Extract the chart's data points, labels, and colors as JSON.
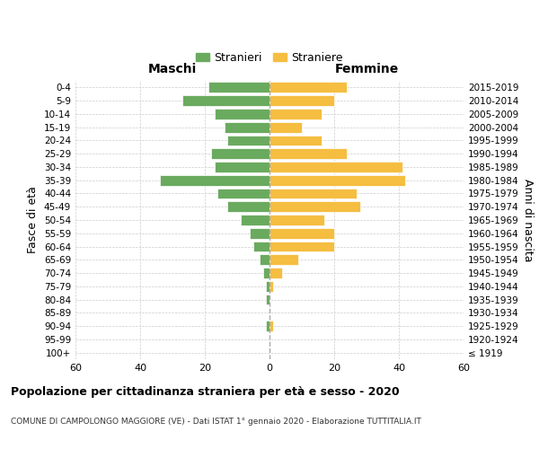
{
  "age_groups": [
    "100+",
    "95-99",
    "90-94",
    "85-89",
    "80-84",
    "75-79",
    "70-74",
    "65-69",
    "60-64",
    "55-59",
    "50-54",
    "45-49",
    "40-44",
    "35-39",
    "30-34",
    "25-29",
    "20-24",
    "15-19",
    "10-14",
    "5-9",
    "0-4"
  ],
  "birth_years": [
    "≤ 1919",
    "1920-1924",
    "1925-1929",
    "1930-1934",
    "1935-1939",
    "1940-1944",
    "1945-1949",
    "1950-1954",
    "1955-1959",
    "1960-1964",
    "1965-1969",
    "1970-1974",
    "1975-1979",
    "1980-1984",
    "1985-1989",
    "1990-1994",
    "1995-1999",
    "2000-2004",
    "2005-2009",
    "2010-2014",
    "2015-2019"
  ],
  "males": [
    0,
    0,
    1,
    0,
    1,
    1,
    2,
    3,
    5,
    6,
    9,
    13,
    16,
    34,
    17,
    18,
    13,
    14,
    17,
    27,
    19
  ],
  "females": [
    0,
    0,
    1,
    0,
    0,
    1,
    4,
    9,
    20,
    20,
    17,
    28,
    27,
    42,
    41,
    24,
    16,
    10,
    16,
    20,
    24
  ],
  "male_color": "#6aaa5f",
  "female_color": "#f5be41",
  "title": "Popolazione per cittadinanza straniera per età e sesso - 2020",
  "subtitle": "COMUNE DI CAMPOLONGO MAGGIORE (VE) - Dati ISTAT 1° gennaio 2020 - Elaborazione TUTTITALIA.IT",
  "ylabel_left": "Fasce di età",
  "ylabel_right": "Anni di nascita",
  "xlim": 60,
  "legend_stranieri": "Stranieri",
  "legend_straniere": "Straniere",
  "maschi_label": "Maschi",
  "femmine_label": "Femmine",
  "background_color": "#ffffff",
  "grid_color": "#cccccc"
}
